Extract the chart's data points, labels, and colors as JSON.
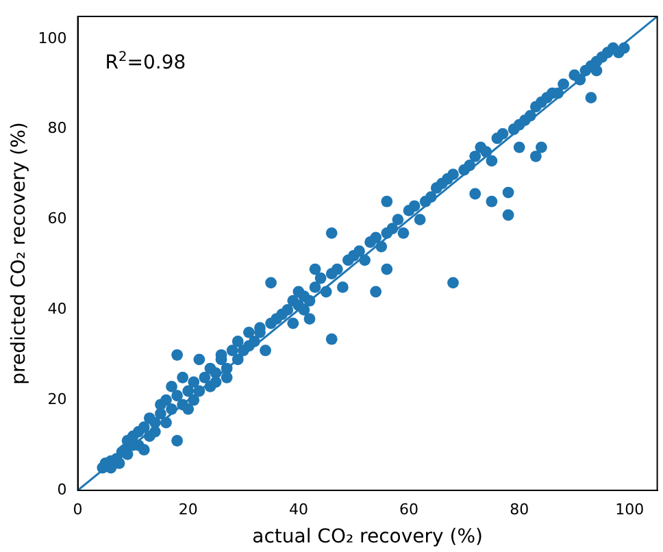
{
  "chart_data": {
    "type": "scatter",
    "xlabel": "actual CO₂ recovery (%)",
    "ylabel": "predicted CO₂ recovery (%)",
    "annotations": [
      "R$^{2}$=0.98"
    ],
    "xlim": [
      0,
      105
    ],
    "ylim": [
      0,
      105
    ],
    "xticks": [
      0,
      20,
      40,
      60,
      80,
      100
    ],
    "yticks": [
      0,
      20,
      40,
      60,
      80,
      100
    ],
    "grid": false,
    "legend": false,
    "series": [
      {
        "color": "#1f77b4",
        "marker": "circle",
        "x": [
          4.5,
          5,
          6,
          6,
          7,
          7.5,
          8,
          8.5,
          9,
          9,
          10,
          10,
          11,
          11,
          12,
          12,
          13,
          13,
          14,
          14,
          15,
          15,
          16,
          16,
          17,
          17,
          18,
          18,
          18,
          19,
          19,
          20,
          20,
          21,
          21,
          22,
          22,
          23,
          24,
          24,
          25,
          25,
          26,
          26,
          27,
          27,
          28,
          29,
          29,
          30,
          31,
          31,
          32,
          33,
          33,
          34,
          35,
          36,
          35,
          37,
          38,
          39,
          39,
          40,
          40,
          41,
          41,
          42,
          43,
          42,
          44,
          45,
          46,
          46,
          47,
          48,
          49,
          50,
          51,
          52,
          53,
          54,
          55,
          56,
          56,
          57,
          58,
          59,
          60,
          61,
          62,
          63,
          64,
          65,
          66,
          67,
          68,
          68,
          70,
          71,
          72,
          73,
          74,
          75,
          76,
          77,
          78,
          78,
          79,
          80,
          80,
          81,
          82,
          83,
          84,
          85,
          86,
          87,
          88,
          90,
          91,
          92,
          93,
          94,
          95,
          96,
          97,
          98,
          99,
          94,
          93,
          83,
          84,
          75,
          72,
          56,
          46,
          43,
          54
        ],
        "values": [
          5,
          6,
          6.5,
          5,
          7,
          6,
          8.5,
          9,
          8,
          11,
          10,
          12,
          10,
          13,
          9,
          14,
          12,
          16,
          15,
          13,
          17,
          19,
          15,
          20,
          18,
          23,
          30,
          11,
          21,
          19,
          25,
          22,
          18,
          24,
          20,
          22,
          29,
          25,
          23,
          27,
          26,
          24,
          29,
          30,
          27,
          25,
          31,
          33,
          29,
          31,
          32,
          35,
          33,
          35,
          36,
          31,
          37,
          38,
          46,
          39,
          40,
          42,
          37,
          41,
          44,
          43,
          40,
          42,
          45,
          38,
          47,
          44,
          33.5,
          48,
          49,
          45,
          51,
          52,
          53,
          51,
          55,
          56,
          54,
          57,
          49,
          58,
          60,
          57,
          62,
          63,
          60,
          64,
          65,
          67,
          68,
          69,
          46,
          70,
          71,
          72,
          74,
          76,
          75,
          73,
          78,
          79,
          61,
          66,
          80,
          81,
          76,
          82,
          83,
          85,
          86,
          87,
          88,
          88,
          90,
          92,
          91,
          93,
          94,
          95,
          96,
          97,
          98,
          97,
          98,
          93,
          87,
          74,
          76,
          64,
          65.7,
          64,
          57,
          49,
          44
        ]
      },
      {
        "type": "line",
        "marker": "none",
        "color": "#1f77b4",
        "x": [
          0,
          105
        ],
        "values": [
          0,
          105
        ]
      }
    ]
  }
}
